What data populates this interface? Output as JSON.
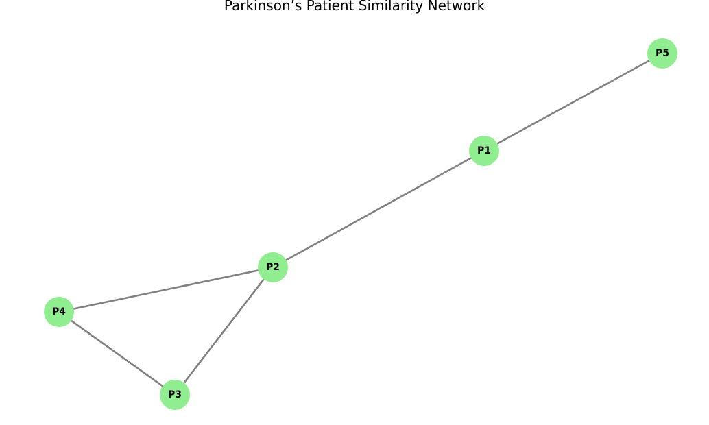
{
  "title": "Parkinson’s Patient Similarity Network",
  "colors": {
    "node_fill": "#90ee90",
    "edge_stroke": "#808080",
    "label": "#000000",
    "background": "#ffffff"
  },
  "nodes": [
    {
      "id": "P1",
      "label": "P1"
    },
    {
      "id": "P2",
      "label": "P2"
    },
    {
      "id": "P3",
      "label": "P3"
    },
    {
      "id": "P4",
      "label": "P4"
    },
    {
      "id": "P5",
      "label": "P5"
    }
  ],
  "edges": [
    {
      "source": "P5",
      "target": "P1"
    },
    {
      "source": "P1",
      "target": "P2"
    },
    {
      "source": "P2",
      "target": "P4"
    },
    {
      "source": "P2",
      "target": "P3"
    },
    {
      "source": "P4",
      "target": "P3"
    }
  ]
}
